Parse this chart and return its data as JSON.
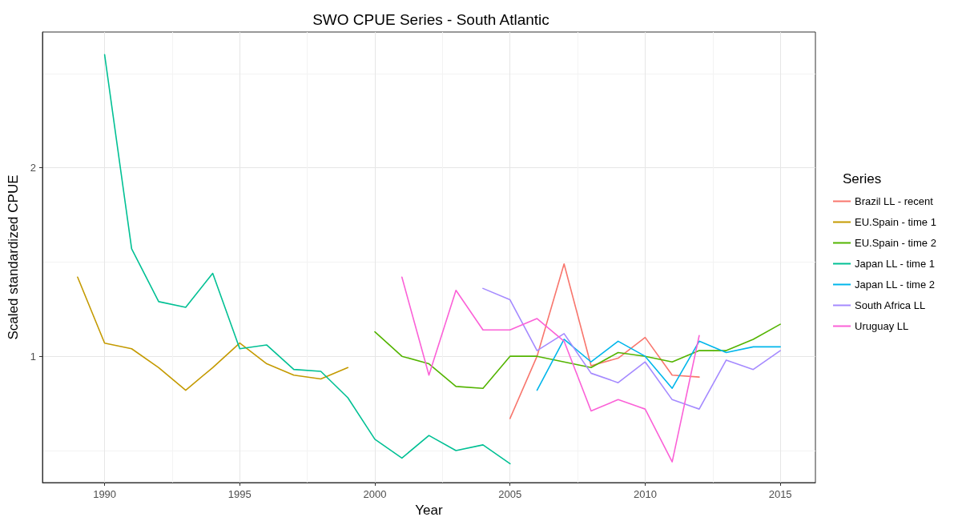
{
  "chart_data": {
    "type": "line",
    "title": "SWO CPUE Series - South Atlantic",
    "xlabel": "Year",
    "ylabel": "Scaled standardized CPUE",
    "legend_title": "Series",
    "xlim": [
      1987.7,
      2016.3
    ],
    "xticks": [
      1990,
      {
        "value": 1992.5,
        "label": null
      },
      1995,
      {
        "value": 1997.5,
        "label": null
      },
      2000,
      {
        "value": 2002.5,
        "label": null
      },
      2005,
      {
        "value": 2007.5,
        "label": null
      },
      2010,
      {
        "value": 2012.5,
        "label": null
      },
      2015
    ],
    "ylim": [
      0.33,
      2.72
    ],
    "yticks": [
      {
        "value": 0.5,
        "label": null
      },
      1,
      {
        "value": 1.5,
        "label": null
      },
      2,
      {
        "value": 2.5,
        "label": null
      }
    ],
    "grid": true,
    "legend": "right",
    "marker": "none",
    "line_style": "solid",
    "series": [
      {
        "name": "Brazil LL - recent",
        "color": "#f8766d",
        "x": [
          2005,
          2006,
          2007,
          2008,
          2009,
          2010,
          2011,
          2012
        ],
        "values": [
          0.67,
          1.0,
          1.49,
          0.95,
          0.99,
          1.1,
          0.9,
          0.89
        ]
      },
      {
        "name": "EU.Spain - time 1",
        "color": "#c49a00",
        "x": [
          1989,
          1990,
          1991,
          1992,
          1993,
          1994,
          1995,
          1996,
          1997,
          1998,
          1999
        ],
        "values": [
          1.42,
          1.07,
          1.04,
          0.94,
          0.82,
          0.94,
          1.07,
          0.96,
          0.9,
          0.88,
          0.94
        ]
      },
      {
        "name": "EU.Spain - time 2",
        "color": "#53b400",
        "x": [
          2000,
          2001,
          2002,
          2003,
          2004,
          2005,
          2006,
          2007,
          2008,
          2009,
          2010,
          2011,
          2012,
          2013,
          2014,
          2015
        ],
        "values": [
          1.13,
          1.0,
          0.96,
          0.84,
          0.83,
          1.0,
          1.0,
          0.97,
          0.94,
          1.02,
          1.0,
          0.97,
          1.03,
          1.03,
          1.09,
          1.17
        ]
      },
      {
        "name": "Japan LL - time 1",
        "color": "#00c094",
        "x": [
          1990,
          1991,
          1992,
          1993,
          1994,
          1995,
          1996,
          1997,
          1998,
          1999,
          2000,
          2001,
          2002,
          2003,
          2004,
          2005
        ],
        "values": [
          2.6,
          1.57,
          1.29,
          1.26,
          1.44,
          1.04,
          1.06,
          0.93,
          0.92,
          0.78,
          0.56,
          0.46,
          0.58,
          0.5,
          0.53,
          0.43
        ]
      },
      {
        "name": "Japan LL - time 2",
        "color": "#00b6eb",
        "x": [
          2006,
          2007,
          2008,
          2009,
          2010,
          2011,
          2012,
          2013,
          2014,
          2015
        ],
        "values": [
          0.82,
          1.09,
          0.97,
          1.08,
          1.0,
          0.83,
          1.08,
          1.02,
          1.05,
          1.05
        ]
      },
      {
        "name": "South Africa LL",
        "color": "#a58aff",
        "x": [
          2004,
          2005,
          2006,
          2007,
          2008,
          2009,
          2010,
          2011,
          2012,
          2013,
          2014,
          2015
        ],
        "values": [
          1.36,
          1.3,
          1.03,
          1.12,
          0.91,
          0.86,
          0.97,
          0.77,
          0.72,
          0.98,
          0.93,
          1.03
        ]
      },
      {
        "name": "Uruguay LL",
        "color": "#fb61d7",
        "x": [
          2001,
          2002,
          2003,
          2004,
          2005,
          2006,
          2007,
          2008,
          2009,
          2010,
          2011,
          2012
        ],
        "values": [
          1.42,
          0.9,
          1.35,
          1.14,
          1.14,
          1.2,
          1.08,
          0.71,
          0.77,
          0.72,
          0.44,
          1.11
        ]
      }
    ]
  }
}
